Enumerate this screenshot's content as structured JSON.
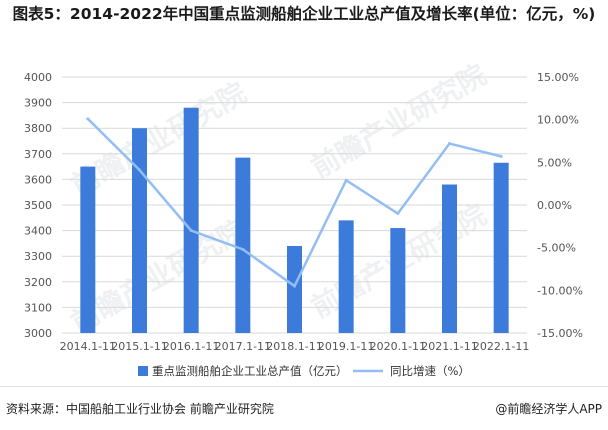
{
  "title": "图表5：2014-2022年中国重点监测船舶企业工业总产值及增长率(单位：亿元，%)",
  "source": "资料来源：中国船舶工业行业协会 前瞻产业研究院",
  "brand": "@前瞻经济学人APP",
  "watermark": "前瞻产业研究院",
  "colors": {
    "bar": "#3d7bdb",
    "line": "#93bdf5",
    "axis_text": "#555555",
    "grid": "#d9d9d9"
  },
  "chart_data": {
    "type": "bar",
    "categories": [
      "2014.1-11",
      "2015.1-11",
      "2016.1-11",
      "2017.1-11",
      "2018.1-11",
      "2019.1-11",
      "2020.1-11",
      "2021.1-11",
      "2022.1-11"
    ],
    "series": [
      {
        "name": "重点监测船舶企业工业总产值（亿元）",
        "type": "bar",
        "axis": "left",
        "values": [
          3650,
          3800,
          3880,
          3685,
          3340,
          3440,
          3410,
          3580,
          3665
        ]
      },
      {
        "name": "同比增速（%）",
        "type": "line",
        "axis": "right",
        "values": [
          10.1,
          4.1,
          -3.0,
          -5.2,
          -9.5,
          2.9,
          -1.0,
          7.2,
          5.7
        ]
      }
    ],
    "y_left": {
      "ylim": [
        3000,
        4000
      ],
      "ticks": [
        3000,
        3100,
        3200,
        3300,
        3400,
        3500,
        3600,
        3700,
        3800,
        3900,
        4000
      ],
      "tick_labels": [
        "3000",
        "3100",
        "3200",
        "3300",
        "3400",
        "3500",
        "3600",
        "3700",
        "3800",
        "3900",
        "4000"
      ]
    },
    "y_right": {
      "ylim": [
        -15,
        15
      ],
      "ticks": [
        -15,
        -10,
        -5,
        0,
        5,
        10,
        15
      ],
      "tick_labels": [
        "-15.00%",
        "-10.00%",
        "-5.00%",
        "0.00%",
        "5.00%",
        "10.00%",
        "15.00%"
      ]
    },
    "grid": true,
    "legend_position": "bottom"
  }
}
